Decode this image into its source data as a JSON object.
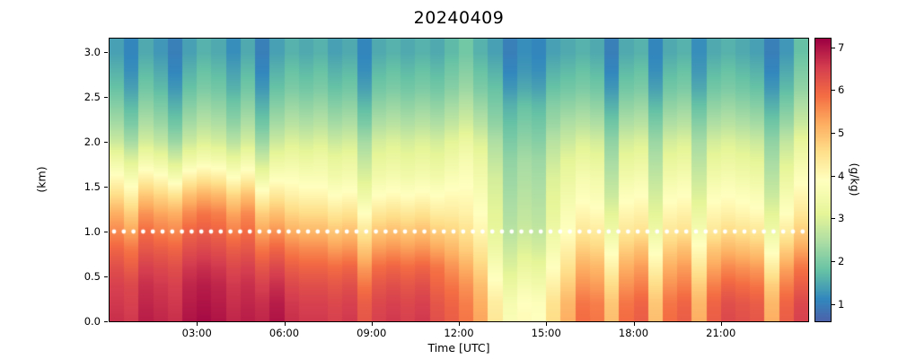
{
  "chart_data": {
    "type": "heatmap",
    "title": "20240409",
    "xlabel": "Time [UTC]",
    "ylabel": "(km)",
    "colormap": "Spectral_r",
    "colormap_stops": [
      [
        0.0,
        "#4d61aa"
      ],
      [
        0.08,
        "#3288bd"
      ],
      [
        0.18,
        "#66c2a5"
      ],
      [
        0.28,
        "#abdda4"
      ],
      [
        0.38,
        "#e6f598"
      ],
      [
        0.5,
        "#ffffbf"
      ],
      [
        0.6,
        "#fee08b"
      ],
      [
        0.7,
        "#fdae61"
      ],
      [
        0.8,
        "#f46d43"
      ],
      [
        0.9,
        "#d53e4f"
      ],
      [
        1.0,
        "#9e0142"
      ]
    ],
    "colorbar": {
      "label": "(g/kg)",
      "vmin": 0.6,
      "vmax": 7.2,
      "ticks": [
        {
          "label": "1",
          "value": 1
        },
        {
          "label": "2",
          "value": 2
        },
        {
          "label": "3",
          "value": 3
        },
        {
          "label": "4",
          "value": 4
        },
        {
          "label": "5",
          "value": 5
        },
        {
          "label": "6",
          "value": 6
        },
        {
          "label": "7",
          "value": 7
        }
      ]
    },
    "x_ticks": [
      {
        "label": "03:00",
        "hour": 3
      },
      {
        "label": "06:00",
        "hour": 6
      },
      {
        "label": "09:00",
        "hour": 9
      },
      {
        "label": "12:00",
        "hour": 12
      },
      {
        "label": "15:00",
        "hour": 15
      },
      {
        "label": "18:00",
        "hour": 18
      },
      {
        "label": "21:00",
        "hour": 21
      }
    ],
    "y_ticks": [
      {
        "label": "0.0",
        "value": 0.0
      },
      {
        "label": "0.5",
        "value": 0.5
      },
      {
        "label": "1.0",
        "value": 1.0
      },
      {
        "label": "1.5",
        "value": 1.5
      },
      {
        "label": "2.0",
        "value": 2.0
      },
      {
        "label": "2.5",
        "value": 2.5
      },
      {
        "label": "3.0",
        "value": 3.0
      }
    ],
    "xlim_hours": [
      0,
      24
    ],
    "ylim": [
      0,
      3.15
    ],
    "time_step_hours": 0.5,
    "heights_km": [
      0.0,
      0.2,
      0.4,
      0.6,
      0.8,
      1.0,
      1.2,
      1.4,
      1.6,
      1.8,
      2.0,
      2.2,
      2.4,
      2.6,
      2.8,
      3.0
    ],
    "overlay_line": {
      "style": "dotted",
      "color": "#ffffff",
      "height_km": 1.0
    },
    "values": [
      [
        6.7,
        6.6,
        6.9,
        6.8,
        6.7,
        7.0,
        7.1,
        7.0,
        6.8,
        6.9,
        6.8,
        7.0,
        6.7,
        6.6,
        6.6,
        6.5,
        6.6,
        6.2,
        6.5,
        6.6,
        6.5,
        6.6,
        6.3,
        6.1,
        5.8,
        5.3,
        4.4,
        3.7,
        4.0,
        3.9,
        4.6,
        5.2,
        5.9,
        5.8,
        5.0,
        5.9,
        6.1,
        5.0,
        5.9,
        6.1,
        5.2,
        6.1,
        6.4,
        6.3,
        6.2,
        5.2,
        6.1,
        6.5
      ],
      [
        6.6,
        6.5,
        6.8,
        6.7,
        6.6,
        6.9,
        7.0,
        6.9,
        6.7,
        6.8,
        6.7,
        6.9,
        6.6,
        6.5,
        6.5,
        6.4,
        6.5,
        6.1,
        6.4,
        6.5,
        6.4,
        6.5,
        6.2,
        6.0,
        5.7,
        5.2,
        4.3,
        3.6,
        3.9,
        3.8,
        4.5,
        5.1,
        5.8,
        5.7,
        4.9,
        5.8,
        6.0,
        4.9,
        5.8,
        6.0,
        5.1,
        6.0,
        6.3,
        6.2,
        6.1,
        5.1,
        6.0,
        6.4
      ],
      [
        6.5,
        6.4,
        6.7,
        6.6,
        6.5,
        6.8,
        6.9,
        6.8,
        6.6,
        6.7,
        6.5,
        6.7,
        6.4,
        6.3,
        6.3,
        6.2,
        6.3,
        5.8,
        6.2,
        6.3,
        6.2,
        6.3,
        6.0,
        5.8,
        5.5,
        5.0,
        4.0,
        3.3,
        3.6,
        3.5,
        4.2,
        4.8,
        5.5,
        5.4,
        4.6,
        5.5,
        5.7,
        4.6,
        5.5,
        5.7,
        4.8,
        5.7,
        6.0,
        5.9,
        5.8,
        4.8,
        5.7,
        6.1
      ],
      [
        6.3,
        6.1,
        6.5,
        6.4,
        6.3,
        6.6,
        6.7,
        6.6,
        6.4,
        6.5,
        6.2,
        6.4,
        6.1,
        6.0,
        6.0,
        5.9,
        6.0,
        5.4,
        5.9,
        6.0,
        5.9,
        6.0,
        5.8,
        5.5,
        5.2,
        4.7,
        3.7,
        3.0,
        3.3,
        3.2,
        3.9,
        4.5,
        5.2,
        5.1,
        4.2,
        5.2,
        5.4,
        4.2,
        5.2,
        5.4,
        4.4,
        5.3,
        5.6,
        5.5,
        5.4,
        4.3,
        5.3,
        5.8
      ],
      [
        6.0,
        5.8,
        6.2,
        6.1,
        6.0,
        6.3,
        6.4,
        6.3,
        6.1,
        6.2,
        5.8,
        6.0,
        5.7,
        5.6,
        5.6,
        5.4,
        5.5,
        4.9,
        5.4,
        5.5,
        5.4,
        5.5,
        5.3,
        5.1,
        4.8,
        4.4,
        3.4,
        2.8,
        3.0,
        2.9,
        3.6,
        4.2,
        4.8,
        4.7,
        3.8,
        4.8,
        5.0,
        3.8,
        4.8,
        5.0,
        4.0,
        4.9,
        5.1,
        5.0,
        4.9,
        3.8,
        4.8,
        5.3
      ],
      [
        5.6,
        5.3,
        5.9,
        5.7,
        5.6,
        6.0,
        6.1,
        6.0,
        5.7,
        5.9,
        5.3,
        5.5,
        5.2,
        5.1,
        5.1,
        4.9,
        5.0,
        4.4,
        4.9,
        5.0,
        4.9,
        5.0,
        4.8,
        4.7,
        4.5,
        4.1,
        3.2,
        2.6,
        2.8,
        2.7,
        3.4,
        3.9,
        4.4,
        4.3,
        3.4,
        4.4,
        4.5,
        3.4,
        4.4,
        4.5,
        3.6,
        4.4,
        4.6,
        4.5,
        4.4,
        3.4,
        4.3,
        4.8
      ],
      [
        5.2,
        4.8,
        5.5,
        5.3,
        5.2,
        5.6,
        5.8,
        5.7,
        5.3,
        5.6,
        4.8,
        5.0,
        4.7,
        4.6,
        4.6,
        4.4,
        4.5,
        3.9,
        4.4,
        4.5,
        4.4,
        4.5,
        4.3,
        4.3,
        4.2,
        3.9,
        3.1,
        2.5,
        2.7,
        2.6,
        3.2,
        3.7,
        4.1,
        4.0,
        3.1,
        4.1,
        4.2,
        3.1,
        4.1,
        4.2,
        3.3,
        4.1,
        4.2,
        4.1,
        4.0,
        3.1,
        3.9,
        4.4
      ],
      [
        4.6,
        4.2,
        4.9,
        4.7,
        4.5,
        5.0,
        5.2,
        5.1,
        4.7,
        5.0,
        4.1,
        4.4,
        4.2,
        4.1,
        4.1,
        3.9,
        4.0,
        3.4,
        3.9,
        4.0,
        3.9,
        4.0,
        3.9,
        4.0,
        4.0,
        3.7,
        3.0,
        2.4,
        2.6,
        2.5,
        3.1,
        3.5,
        3.8,
        3.7,
        2.8,
        3.8,
        3.9,
        2.9,
        3.8,
        3.9,
        3.0,
        3.8,
        3.9,
        3.8,
        3.7,
        2.8,
        3.6,
        4.1
      ],
      [
        4.0,
        3.6,
        4.2,
        4.0,
        3.6,
        4.2,
        4.4,
        4.3,
        3.9,
        4.2,
        3.4,
        3.8,
        3.8,
        3.7,
        3.7,
        3.5,
        3.6,
        3.0,
        3.5,
        3.6,
        3.5,
        3.6,
        3.5,
        3.7,
        3.8,
        3.5,
        2.9,
        2.3,
        2.5,
        2.4,
        3.0,
        3.3,
        3.6,
        3.5,
        2.6,
        3.5,
        3.6,
        2.7,
        3.5,
        3.6,
        2.8,
        3.5,
        3.6,
        3.5,
        3.4,
        2.6,
        3.3,
        3.8
      ],
      [
        3.4,
        3.0,
        3.5,
        3.3,
        2.9,
        3.4,
        3.6,
        3.5,
        3.2,
        3.5,
        2.8,
        3.3,
        3.4,
        3.3,
        3.4,
        3.2,
        3.3,
        2.7,
        3.2,
        3.3,
        3.2,
        3.3,
        3.2,
        3.4,
        3.6,
        3.3,
        2.7,
        2.2,
        2.4,
        2.3,
        2.8,
        3.1,
        3.3,
        3.2,
        2.4,
        3.2,
        3.3,
        2.5,
        3.2,
        3.3,
        2.6,
        3.2,
        3.3,
        3.2,
        3.1,
        2.4,
        3.0,
        3.5
      ],
      [
        2.8,
        2.4,
        2.9,
        2.7,
        2.3,
        2.8,
        3.0,
        2.9,
        2.6,
        2.9,
        2.3,
        2.8,
        3.0,
        2.9,
        3.0,
        2.8,
        2.9,
        2.4,
        2.9,
        3.0,
        2.9,
        3.0,
        2.9,
        3.1,
        3.3,
        3.0,
        2.5,
        2.0,
        2.2,
        2.1,
        2.6,
        2.8,
        3.0,
        2.9,
        2.2,
        2.9,
        3.0,
        2.3,
        2.9,
        3.0,
        2.4,
        2.9,
        3.0,
        2.9,
        2.8,
        2.2,
        2.7,
        3.2
      ],
      [
        2.4,
        2.0,
        2.5,
        2.3,
        1.9,
        2.4,
        2.6,
        2.5,
        2.2,
        2.5,
        1.9,
        2.4,
        2.6,
        2.5,
        2.6,
        2.4,
        2.5,
        2.0,
        2.5,
        2.6,
        2.5,
        2.6,
        2.5,
        2.7,
        2.9,
        2.6,
        2.2,
        1.8,
        2.0,
        1.9,
        2.3,
        2.5,
        2.6,
        2.5,
        1.9,
        2.5,
        2.6,
        2.0,
        2.5,
        2.6,
        2.1,
        2.5,
        2.6,
        2.5,
        2.4,
        1.9,
        2.3,
        2.8
      ],
      [
        2.1,
        1.7,
        2.2,
        2.0,
        1.6,
        2.1,
        2.3,
        2.2,
        1.9,
        2.2,
        1.6,
        2.1,
        2.3,
        2.2,
        2.3,
        2.1,
        2.2,
        1.7,
        2.2,
        2.3,
        2.2,
        2.3,
        2.2,
        2.4,
        2.6,
        2.3,
        2.0,
        1.6,
        1.8,
        1.7,
        2.1,
        2.2,
        2.3,
        2.2,
        1.6,
        2.2,
        2.3,
        1.7,
        2.2,
        2.3,
        1.8,
        2.2,
        2.3,
        2.2,
        2.1,
        1.6,
        2.0,
        2.5
      ],
      [
        1.8,
        1.4,
        1.9,
        1.7,
        1.3,
        1.8,
        2.0,
        1.9,
        1.6,
        1.9,
        1.3,
        1.8,
        2.0,
        1.9,
        2.0,
        1.8,
        1.9,
        1.4,
        1.9,
        2.0,
        1.9,
        2.0,
        1.9,
        2.1,
        2.3,
        2.0,
        1.8,
        1.3,
        1.5,
        1.4,
        1.8,
        1.9,
        2.0,
        1.9,
        1.3,
        1.9,
        2.0,
        1.4,
        1.9,
        2.0,
        1.5,
        1.9,
        2.0,
        1.9,
        1.8,
        1.3,
        1.7,
        2.2
      ],
      [
        1.6,
        1.2,
        1.7,
        1.5,
        1.1,
        1.6,
        1.8,
        1.7,
        1.4,
        1.7,
        1.1,
        1.6,
        1.8,
        1.7,
        1.8,
        1.6,
        1.7,
        1.2,
        1.7,
        1.8,
        1.7,
        1.8,
        1.7,
        1.9,
        2.1,
        1.8,
        1.6,
        1.1,
        1.3,
        1.2,
        1.6,
        1.7,
        1.8,
        1.7,
        1.1,
        1.7,
        1.8,
        1.2,
        1.7,
        1.8,
        1.3,
        1.7,
        1.8,
        1.7,
        1.6,
        1.1,
        1.5,
        2.0
      ],
      [
        1.4,
        1.1,
        1.5,
        1.3,
        1.0,
        1.4,
        1.6,
        1.5,
        1.2,
        1.5,
        1.0,
        1.4,
        1.6,
        1.5,
        1.6,
        1.4,
        1.5,
        1.1,
        1.5,
        1.6,
        1.5,
        1.6,
        1.5,
        1.7,
        1.9,
        1.6,
        1.4,
        1.0,
        1.2,
        1.1,
        1.4,
        1.5,
        1.6,
        1.5,
        1.0,
        1.5,
        1.6,
        1.1,
        1.5,
        1.6,
        1.2,
        1.5,
        1.6,
        1.5,
        1.4,
        1.0,
        1.3,
        1.8
      ]
    ]
  }
}
